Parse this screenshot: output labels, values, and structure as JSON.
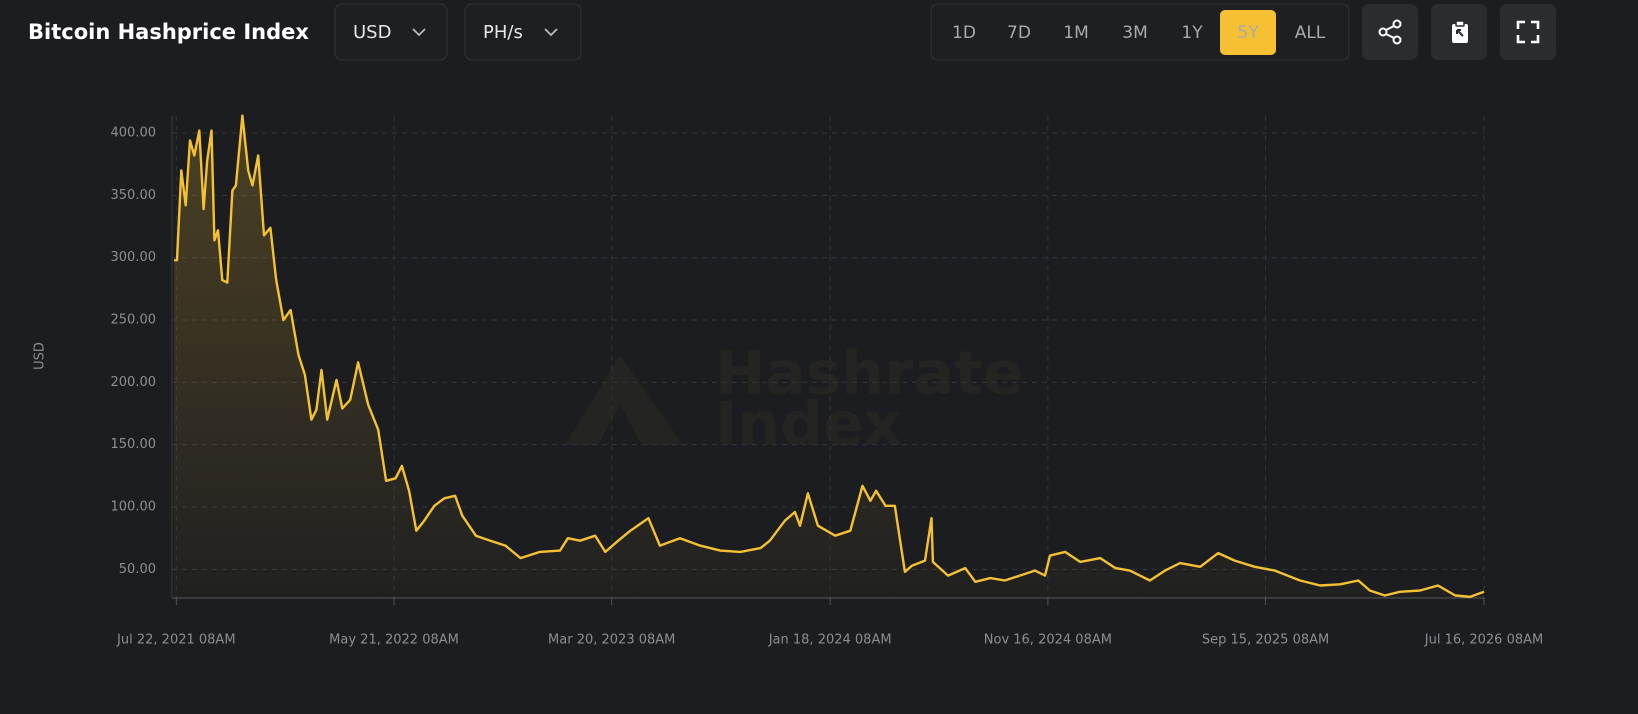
{
  "ui": {
    "currency": "USD",
    "unit": "PH/s",
    "ranges": [
      "1D",
      "7D",
      "1M",
      "3M",
      "1Y",
      "5Y",
      "ALL"
    ],
    "active_range": "5Y",
    "watermark": [
      "Hashrate",
      "Index"
    ]
  },
  "chart_data": {
    "type": "line",
    "title": "Bitcoin Hashprice Index",
    "y_label": "USD",
    "color": "#f5c133",
    "grid": true,
    "x": [
      "2021-07-19",
      "2021-07-23",
      "2021-07-29",
      "2021-08-04",
      "2021-08-10",
      "2021-08-16",
      "2021-08-23",
      "2021-08-29",
      "2021-09-03",
      "2021-09-09",
      "2021-09-13",
      "2021-09-18",
      "2021-09-24",
      "2021-10-01",
      "2021-10-08",
      "2021-10-13",
      "2021-10-22",
      "2021-10-30",
      "2021-11-05",
      "2021-11-13",
      "2021-11-21",
      "2021-11-30",
      "2021-12-08",
      "2021-12-18",
      "2021-12-28",
      "2022-01-08",
      "2022-01-17",
      "2022-01-26",
      "2022-02-02",
      "2022-02-09",
      "2022-02-17",
      "2022-03-02",
      "2022-03-10",
      "2022-03-21",
      "2022-04-01",
      "2022-04-15",
      "2022-04-29",
      "2022-05-10",
      "2022-05-23",
      "2022-06-01",
      "2022-06-11",
      "2022-06-21",
      "2022-07-02",
      "2022-07-16",
      "2022-07-30",
      "2022-08-14",
      "2022-08-24",
      "2022-09-12",
      "2022-10-02",
      "2022-10-23",
      "2022-11-13",
      "2022-12-10",
      "2023-01-07",
      "2023-01-18",
      "2023-02-04",
      "2023-02-25",
      "2023-03-11",
      "2023-03-29",
      "2023-04-15",
      "2023-05-10",
      "2023-05-26",
      "2023-06-23",
      "2023-07-21",
      "2023-08-18",
      "2023-09-15",
      "2023-10-13",
      "2023-10-26",
      "2023-11-16",
      "2023-11-30",
      "2023-12-07",
      "2023-12-18",
      "2024-01-01",
      "2024-01-25",
      "2024-02-15",
      "2024-03-03",
      "2024-03-14",
      "2024-03-22",
      "2024-04-04",
      "2024-04-17",
      "2024-05-01",
      "2024-05-11",
      "2024-05-29",
      "2024-06-07",
      "2024-06-09",
      "2024-06-30",
      "2024-07-24",
      "2024-08-07",
      "2024-08-28",
      "2024-09-17",
      "2024-10-08",
      "2024-10-29",
      "2024-11-12",
      "2024-11-19",
      "2024-12-10",
      "2024-12-31",
      "2025-01-28",
      "2025-02-18",
      "2025-03-10",
      "2025-04-07",
      "2025-04-28",
      "2025-05-19",
      "2025-06-16",
      "2025-07-11",
      "2025-08-03",
      "2025-08-31",
      "2025-09-28",
      "2025-11-02",
      "2025-11-30",
      "2025-12-28",
      "2026-01-22",
      "2026-02-07",
      "2026-02-28",
      "2026-03-21",
      "2026-04-18",
      "2026-05-13",
      "2026-06-06",
      "2026-06-27",
      "2026-07-16"
    ],
    "values": [
      298,
      298,
      370,
      342,
      394,
      382,
      402,
      339,
      378,
      402,
      314,
      322,
      282,
      280,
      354,
      358,
      414,
      370,
      358,
      382,
      318,
      324,
      282,
      250,
      258,
      222,
      206,
      170,
      178,
      210,
      170,
      202,
      179,
      186,
      216,
      182,
      162,
      121,
      123,
      133,
      113,
      81,
      89,
      101,
      107,
      109,
      93,
      77,
      73,
      69,
      59,
      64,
      65,
      75,
      73,
      77,
      64,
      73,
      81,
      91,
      69,
      75,
      69,
      65,
      64,
      67,
      73,
      89,
      96,
      85,
      111,
      85,
      77,
      81,
      117,
      105,
      113,
      101,
      101,
      48,
      53,
      57,
      91,
      56,
      45,
      51,
      40,
      43,
      41,
      45,
      49,
      45,
      61,
      64,
      56,
      59,
      51,
      49,
      41,
      49,
      55,
      52,
      63,
      57,
      52,
      49,
      41,
      37,
      38,
      41,
      33,
      29,
      32,
      33,
      37,
      29,
      28,
      32
    ],
    "xlim": [
      "2021-07-16",
      "2026-07-16"
    ],
    "xticks": [
      {
        "value": "2021-07-22",
        "label": "Jul 22, 2021 08AM"
      },
      {
        "value": "2022-05-21",
        "label": "May 21, 2022 08AM"
      },
      {
        "value": "2023-03-20",
        "label": "Mar 20, 2023 08AM"
      },
      {
        "value": "2024-01-18",
        "label": "Jan 18, 2024 08AM"
      },
      {
        "value": "2024-11-16",
        "label": "Nov 16, 2024 08AM"
      },
      {
        "value": "2025-09-15",
        "label": "Sep 15, 2025 08AM"
      },
      {
        "value": "2026-07-16",
        "label": "Jul 16, 2026 08AM"
      }
    ],
    "ylim": [
      27,
      414
    ],
    "yticks": [
      {
        "value": 50,
        "label": "50.00"
      },
      {
        "value": 100,
        "label": "100.00"
      },
      {
        "value": 150,
        "label": "150.00"
      },
      {
        "value": 200,
        "label": "200.00"
      },
      {
        "value": 250,
        "label": "250.00"
      },
      {
        "value": 300,
        "label": "300.00"
      },
      {
        "value": 350,
        "label": "350.00"
      },
      {
        "value": 400,
        "label": "400.00"
      }
    ]
  }
}
